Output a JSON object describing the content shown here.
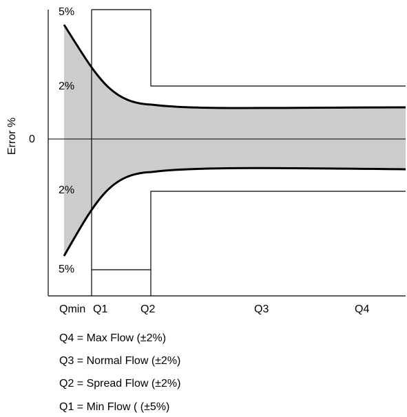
{
  "diagram": {
    "y_axis_label": "Error %",
    "y_labels": {
      "top_5": "5%",
      "upper_2": "2%",
      "zero": "0",
      "lower_2": "2%",
      "bottom_5": "5%"
    },
    "x_labels": [
      "Qmin",
      "Q1",
      "Q2",
      "Q3",
      "Q4"
    ],
    "legend": [
      "Q4 = Max Flow (±2%)",
      "Q3 = Normal Flow (±2%)",
      "Q2 = Spread Flow (±2%)",
      "Q1 = Min Flow ( (±5%)"
    ],
    "colors": {
      "band_fill": "#cccccc",
      "stroke": "#000000",
      "background": "#ffffff"
    }
  }
}
